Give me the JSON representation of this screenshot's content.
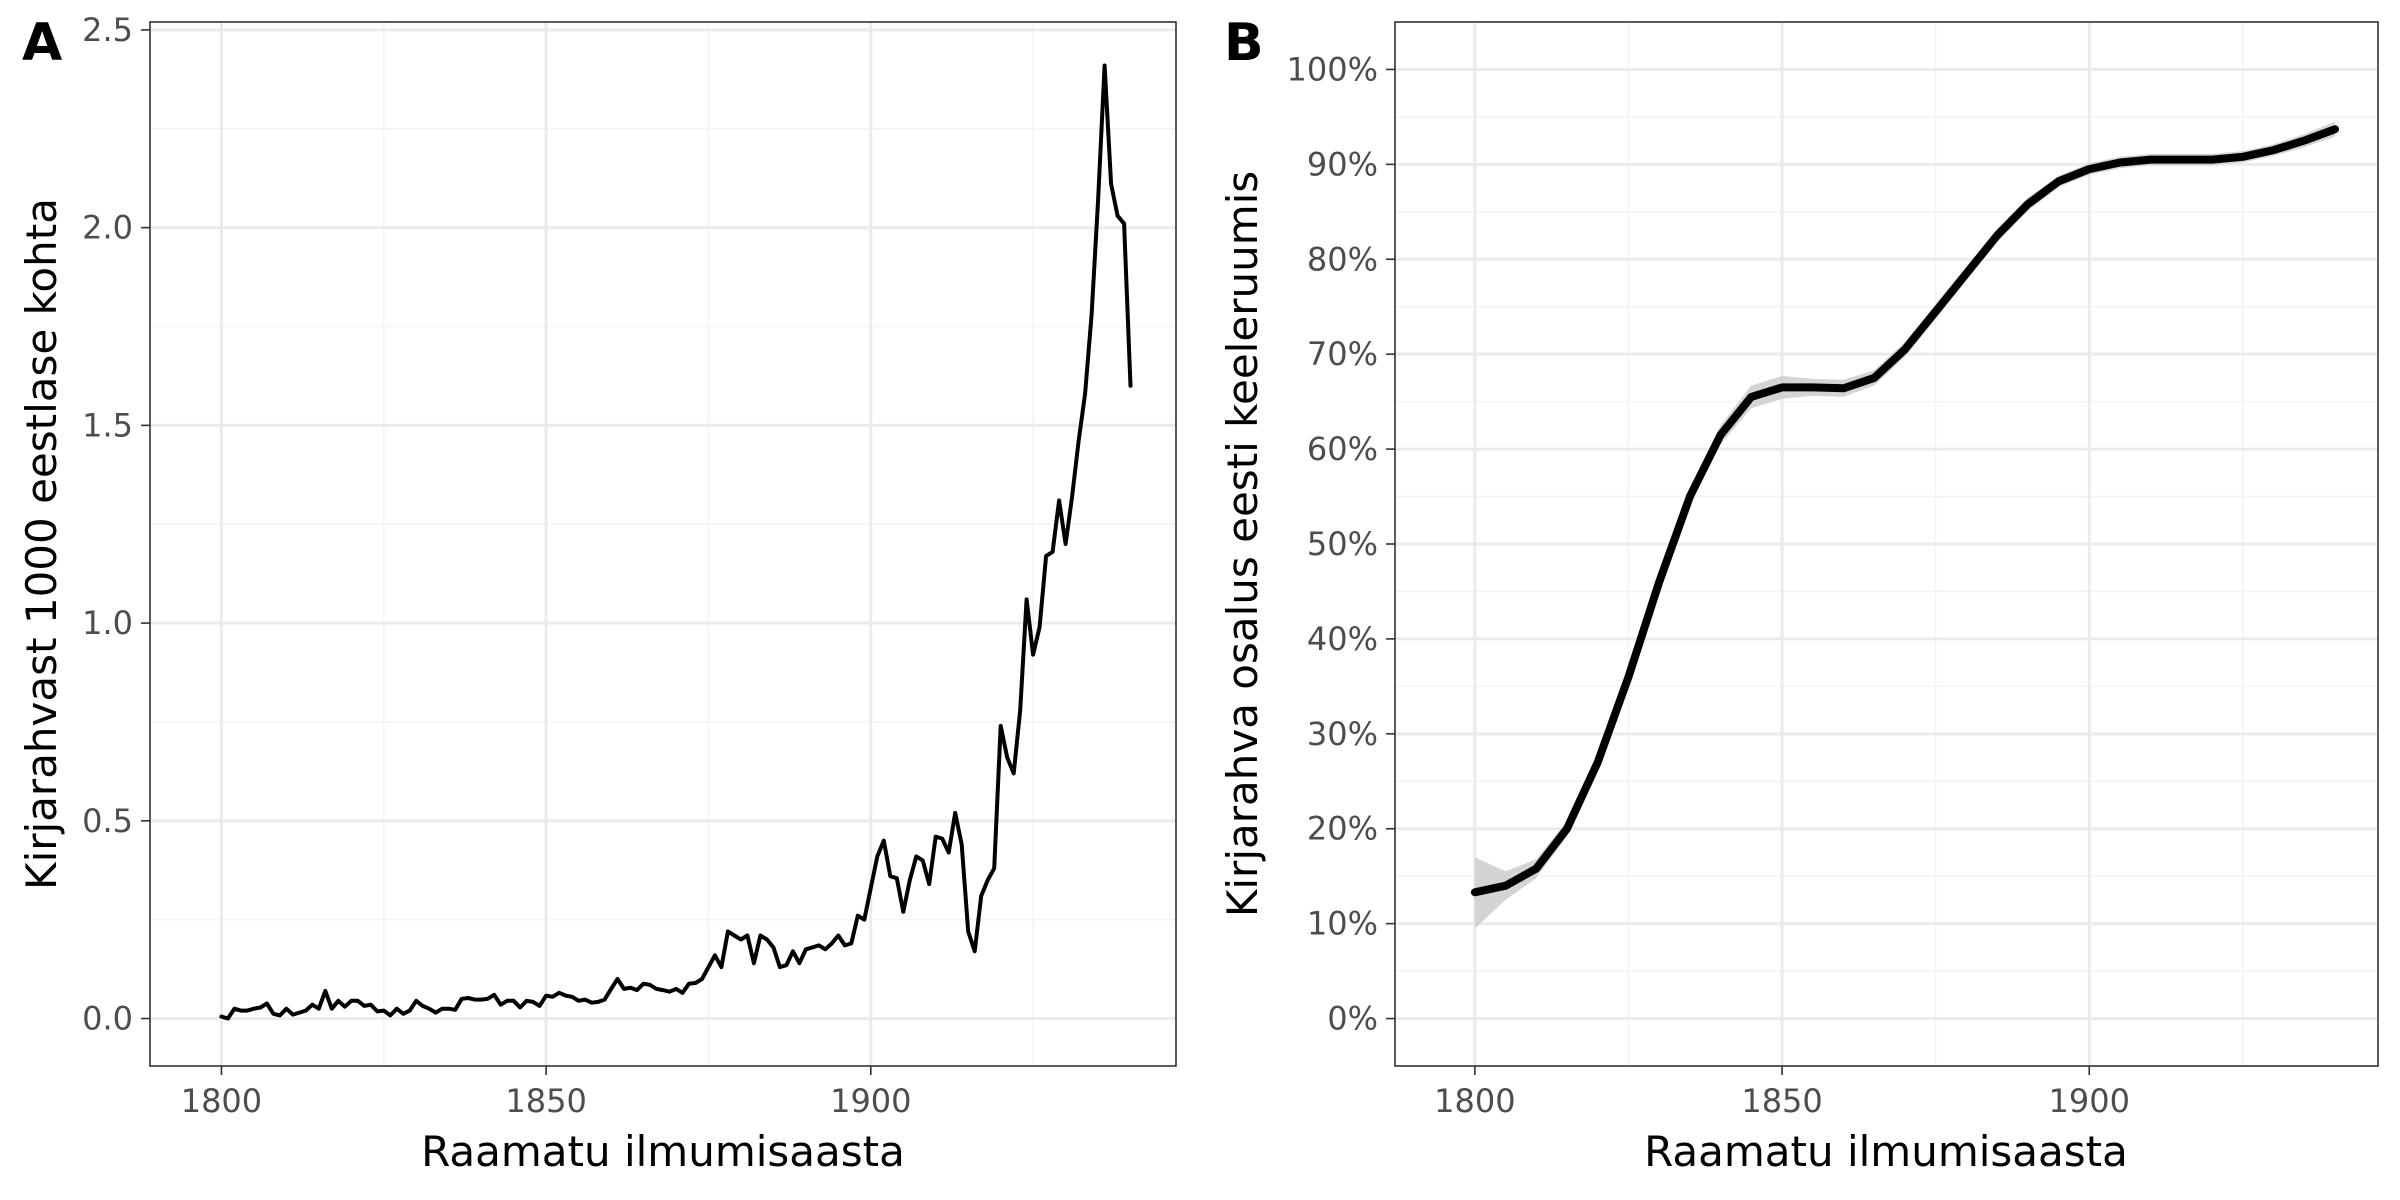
{
  "chart_data": [
    {
      "panel": "A",
      "type": "line",
      "xlabel": "Raamatu ilmumisaasta",
      "ylabel": "Kirjarahvast 1000 eestlase kohta",
      "xlim": [
        1789,
        1947
      ],
      "ylim": [
        -0.12,
        2.52
      ],
      "xticks": [
        1800,
        1850,
        1900
      ],
      "yticks": [
        0.0,
        0.5,
        1.0,
        1.5,
        2.0,
        2.5
      ],
      "yticklabels": [
        "0.0",
        "0.5",
        "1.0",
        "1.5",
        "2.0",
        "2.5"
      ],
      "grid": true,
      "series": [
        {
          "color": "#000000",
          "x": [
            1800,
            1801,
            1802,
            1803,
            1804,
            1805,
            1806,
            1807,
            1808,
            1809,
            1810,
            1811,
            1812,
            1813,
            1814,
            1815,
            1816,
            1817,
            1818,
            1819,
            1820,
            1821,
            1822,
            1823,
            1824,
            1825,
            1826,
            1827,
            1828,
            1829,
            1830,
            1831,
            1832,
            1833,
            1834,
            1835,
            1836,
            1837,
            1838,
            1839,
            1840,
            1841,
            1842,
            1843,
            1844,
            1845,
            1846,
            1847,
            1848,
            1849,
            1850,
            1851,
            1852,
            1853,
            1854,
            1855,
            1856,
            1857,
            1858,
            1859,
            1860,
            1861,
            1862,
            1863,
            1864,
            1865,
            1866,
            1867,
            1868,
            1869,
            1870,
            1871,
            1872,
            1873,
            1874,
            1875,
            1876,
            1877,
            1878,
            1879,
            1880,
            1881,
            1882,
            1883,
            1884,
            1885,
            1886,
            1887,
            1888,
            1889,
            1890,
            1891,
            1892,
            1893,
            1894,
            1895,
            1896,
            1897,
            1898,
            1899,
            1900,
            1901,
            1902,
            1903,
            1904,
            1905,
            1906,
            1907,
            1908,
            1909,
            1910,
            1911,
            1912,
            1913,
            1914,
            1915,
            1916,
            1917,
            1918,
            1919,
            1920,
            1921,
            1922,
            1923,
            1924,
            1925,
            1926,
            1927,
            1928,
            1929,
            1930,
            1931,
            1932,
            1933,
            1934,
            1935,
            1936,
            1937,
            1938,
            1939,
            1940
          ],
          "y": [
            0.005,
            0.0,
            0.025,
            0.02,
            0.02,
            0.025,
            0.028,
            0.038,
            0.012,
            0.008,
            0.025,
            0.01,
            0.015,
            0.02,
            0.035,
            0.025,
            0.07,
            0.025,
            0.045,
            0.03,
            0.045,
            0.045,
            0.032,
            0.035,
            0.018,
            0.02,
            0.008,
            0.025,
            0.012,
            0.02,
            0.045,
            0.032,
            0.025,
            0.015,
            0.025,
            0.025,
            0.022,
            0.05,
            0.052,
            0.048,
            0.048,
            0.05,
            0.06,
            0.035,
            0.045,
            0.045,
            0.028,
            0.045,
            0.042,
            0.032,
            0.058,
            0.055,
            0.065,
            0.058,
            0.055,
            0.045,
            0.048,
            0.04,
            0.042,
            0.048,
            0.075,
            0.1,
            0.075,
            0.078,
            0.072,
            0.088,
            0.085,
            0.075,
            0.072,
            0.068,
            0.075,
            0.065,
            0.088,
            0.09,
            0.1,
            0.13,
            0.16,
            0.13,
            0.22,
            0.21,
            0.2,
            0.21,
            0.14,
            0.21,
            0.2,
            0.18,
            0.13,
            0.135,
            0.17,
            0.14,
            0.175,
            0.18,
            0.185,
            0.175,
            0.19,
            0.21,
            0.185,
            0.19,
            0.26,
            0.25,
            0.33,
            0.41,
            0.45,
            0.36,
            0.355,
            0.27,
            0.35,
            0.41,
            0.4,
            0.34,
            0.46,
            0.455,
            0.42,
            0.52,
            0.44,
            0.22,
            0.17,
            0.31,
            0.35,
            0.38,
            0.74,
            0.66,
            0.62,
            0.78,
            1.06,
            0.92,
            0.99,
            1.17,
            1.18,
            1.31,
            1.2,
            1.32,
            1.46,
            1.58,
            1.78,
            2.07,
            2.41,
            2.11,
            2.03,
            2.01,
            1.6
          ]
        }
      ]
    },
    {
      "panel": "B",
      "type": "line",
      "xlabel": "Raamatu ilmumisaasta",
      "ylabel": "Kirjarahva osalus eesti keeleruumis",
      "xlim": [
        1787,
        1947
      ],
      "ylim": [
        -0.05,
        1.05
      ],
      "xticks": [
        1800,
        1850,
        1900
      ],
      "yticks": [
        0.0,
        0.1,
        0.2,
        0.3,
        0.4,
        0.5,
        0.6,
        0.7,
        0.8,
        0.9,
        1.0
      ],
      "yticklabels": [
        "0%",
        "10%",
        "20%",
        "30%",
        "40%",
        "50%",
        "60%",
        "70%",
        "80%",
        "90%",
        "100%"
      ],
      "grid": true,
      "series": [
        {
          "color": "#000000",
          "band_color": "#cccccc",
          "x": [
            1800,
            1805,
            1810,
            1815,
            1820,
            1825,
            1830,
            1835,
            1840,
            1845,
            1850,
            1855,
            1860,
            1865,
            1870,
            1875,
            1880,
            1885,
            1890,
            1895,
            1900,
            1905,
            1910,
            1915,
            1920,
            1925,
            1930,
            1935,
            1940
          ],
          "y": [
            0.133,
            0.14,
            0.158,
            0.2,
            0.27,
            0.36,
            0.46,
            0.55,
            0.615,
            0.655,
            0.665,
            0.665,
            0.664,
            0.675,
            0.705,
            0.745,
            0.785,
            0.825,
            0.858,
            0.882,
            0.895,
            0.902,
            0.905,
            0.905,
            0.905,
            0.908,
            0.915,
            0.925,
            0.937
          ],
          "lower": [
            0.095,
            0.125,
            0.148,
            0.192,
            0.262,
            0.352,
            0.452,
            0.542,
            0.605,
            0.643,
            0.653,
            0.656,
            0.655,
            0.667,
            0.697,
            0.737,
            0.778,
            0.818,
            0.851,
            0.876,
            0.889,
            0.896,
            0.899,
            0.899,
            0.899,
            0.902,
            0.909,
            0.918,
            0.929
          ],
          "upper": [
            0.17,
            0.155,
            0.168,
            0.208,
            0.278,
            0.368,
            0.468,
            0.558,
            0.625,
            0.667,
            0.677,
            0.674,
            0.673,
            0.683,
            0.713,
            0.753,
            0.792,
            0.832,
            0.865,
            0.888,
            0.901,
            0.908,
            0.911,
            0.911,
            0.911,
            0.914,
            0.921,
            0.932,
            0.945
          ]
        }
      ]
    }
  ]
}
